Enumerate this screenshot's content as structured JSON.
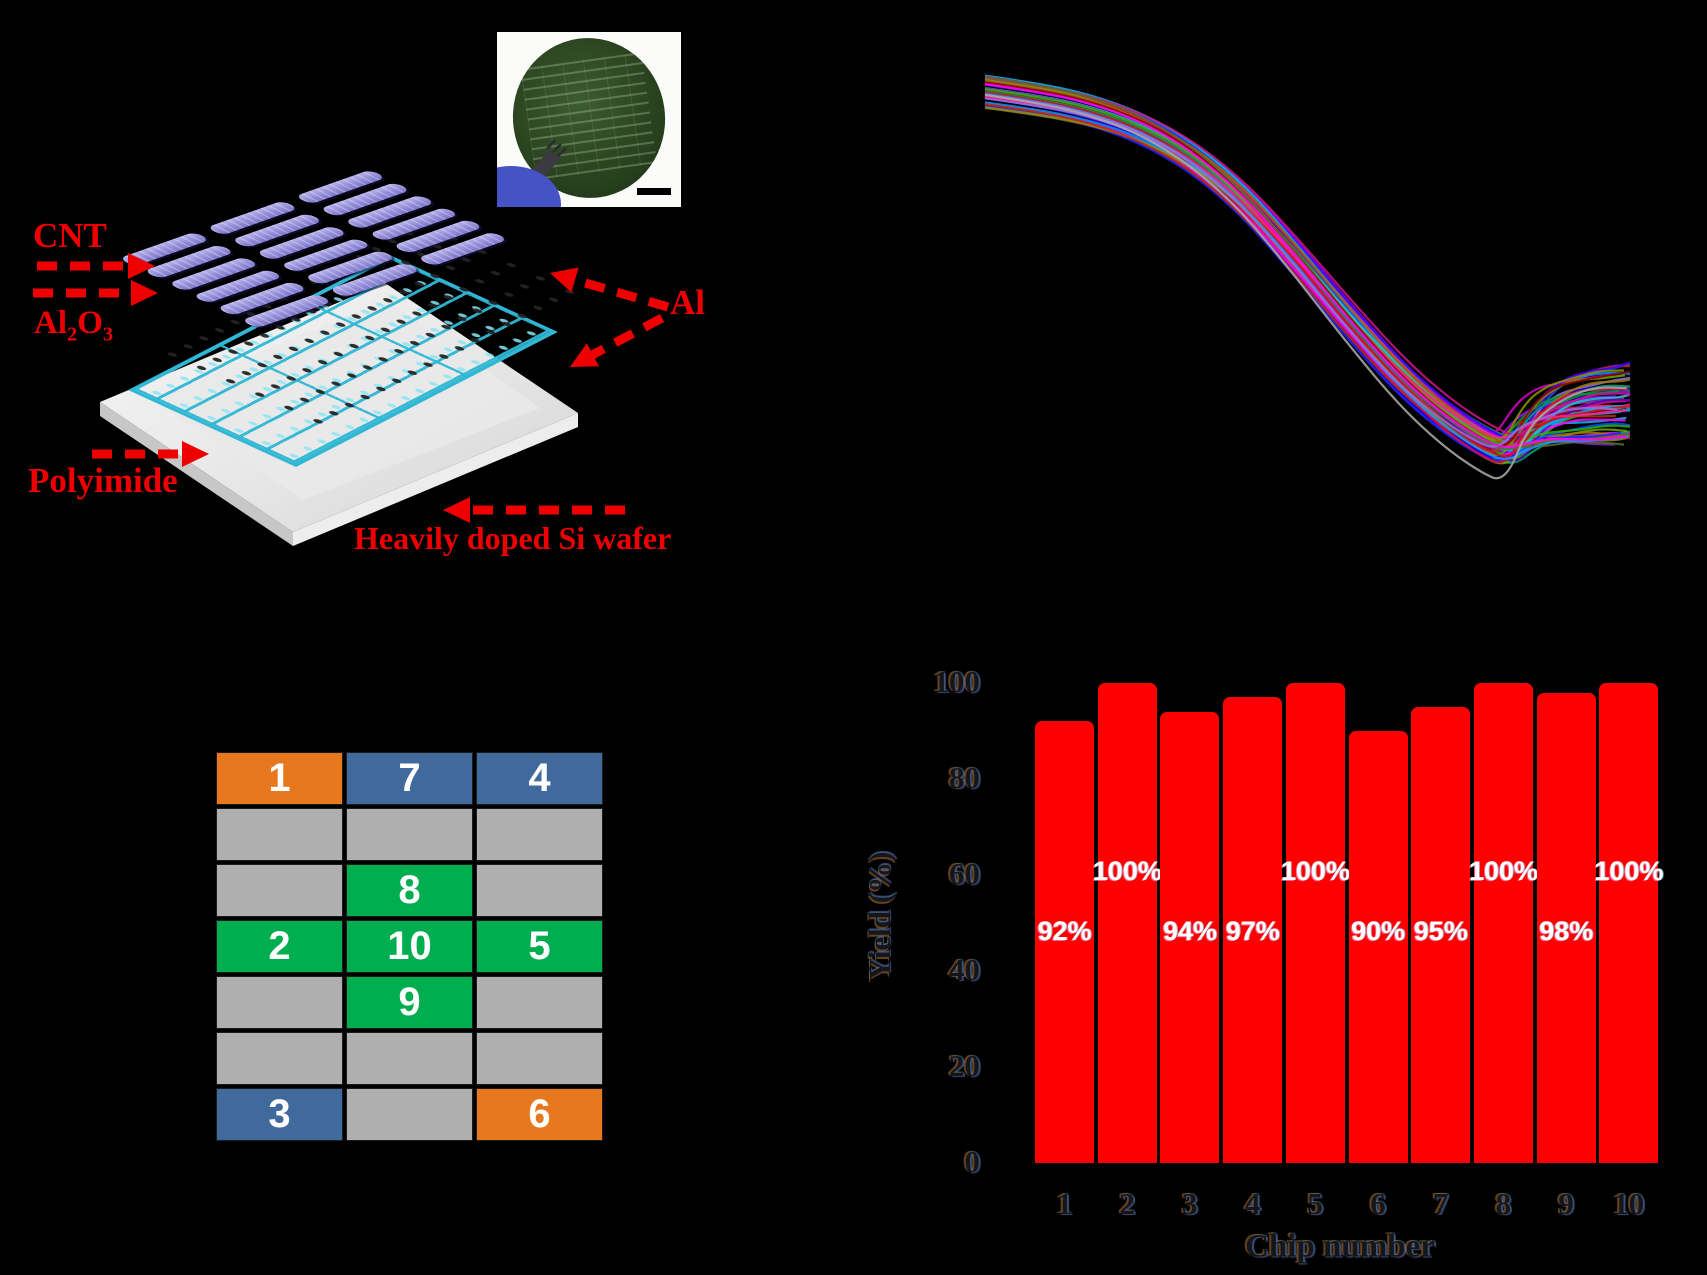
{
  "figure": {
    "background": "#000000",
    "accent_red": "#ee0000"
  },
  "schematic": {
    "labels": {
      "cnt": "CNT",
      "al2o3": {
        "p1": "Al",
        "s1": "2",
        "p2": "O",
        "s2": "3"
      },
      "al": "Al",
      "polyimide": "Polyimide",
      "si_wafer": "Heavily doped Si wafer"
    }
  },
  "chip_map": {
    "columns": 3,
    "colors": {
      "orange": "#E8781E",
      "blue": "#3F6A9B",
      "green": "#00AD4F",
      "gray": "#AFAFAF"
    },
    "cells": [
      {
        "label": "1",
        "color": "orange"
      },
      {
        "label": "7",
        "color": "blue"
      },
      {
        "label": "4",
        "color": "blue"
      },
      {
        "label": "",
        "color": "gray"
      },
      {
        "label": "",
        "color": "gray"
      },
      {
        "label": "",
        "color": "gray"
      },
      {
        "label": "",
        "color": "gray"
      },
      {
        "label": "8",
        "color": "green"
      },
      {
        "label": "",
        "color": "gray"
      },
      {
        "label": "2",
        "color": "green"
      },
      {
        "label": "10",
        "color": "green"
      },
      {
        "label": "5",
        "color": "green"
      },
      {
        "label": "",
        "color": "gray"
      },
      {
        "label": "9",
        "color": "green"
      },
      {
        "label": "",
        "color": "gray"
      },
      {
        "label": "",
        "color": "gray"
      },
      {
        "label": "",
        "color": "gray"
      },
      {
        "label": "",
        "color": "gray"
      },
      {
        "label": "3",
        "color": "blue"
      },
      {
        "label": "",
        "color": "gray"
      },
      {
        "label": "6",
        "color": "orange"
      }
    ]
  },
  "chart_data": [
    {
      "name": "transfer-curves",
      "type": "line",
      "title": "",
      "axes_visible": false,
      "legend": false,
      "series_count": 58,
      "description": "Overlaid transistor transfer curves of many devices: flat high-current region at upper left, steep monotonic decrease, minimum at lower right, short rising tails to the right edge",
      "base_curve_norm": [
        [
          0.0,
          0.0
        ],
        [
          0.08,
          0.02
        ],
        [
          0.16,
          0.05
        ],
        [
          0.24,
          0.1
        ],
        [
          0.32,
          0.18
        ],
        [
          0.4,
          0.3
        ],
        [
          0.48,
          0.46
        ],
        [
          0.56,
          0.63
        ],
        [
          0.64,
          0.79
        ],
        [
          0.71,
          0.9
        ],
        [
          0.77,
          0.97
        ],
        [
          0.81,
          1.0
        ]
      ],
      "colors": [
        "#ff00ff",
        "#d400c0",
        "#aa00ff",
        "#7b2fbe",
        "#5a00b0",
        "#3c00ff",
        "#0000e0",
        "#2222ff",
        "#0050ff",
        "#0090ff",
        "#00b4e6",
        "#18c8c8",
        "#00a070",
        "#00952a",
        "#30b000",
        "#6aa800",
        "#8a9200",
        "#a07800",
        "#b05a00",
        "#c03000",
        "#d01010",
        "#e00040",
        "#ff2090",
        "#c71585",
        "#8b0000",
        "#556b2f",
        "#1e90ff",
        "#9370db"
      ],
      "deep_curve_color": "#a8a8a8"
    },
    {
      "name": "yield-by-chip",
      "type": "bar",
      "categories": [
        "1",
        "2",
        "3",
        "4",
        "5",
        "6",
        "7",
        "8",
        "9",
        "10"
      ],
      "values": [
        92,
        100,
        94,
        97,
        100,
        90,
        95,
        100,
        98,
        100
      ],
      "bar_labels": [
        "92%",
        "100%",
        "94%",
        "97%",
        "100%",
        "90%",
        "95%",
        "100%",
        "98%",
        "100%"
      ],
      "xlabel": "Chip number",
      "ylabel": "Yield (%)",
      "ylim": [
        0,
        100
      ],
      "yticks": [
        0,
        20,
        40,
        60,
        80,
        100
      ],
      "grid": false,
      "legend": false,
      "bar_color": "#fe0000",
      "label_color": "#ffffff"
    }
  ]
}
